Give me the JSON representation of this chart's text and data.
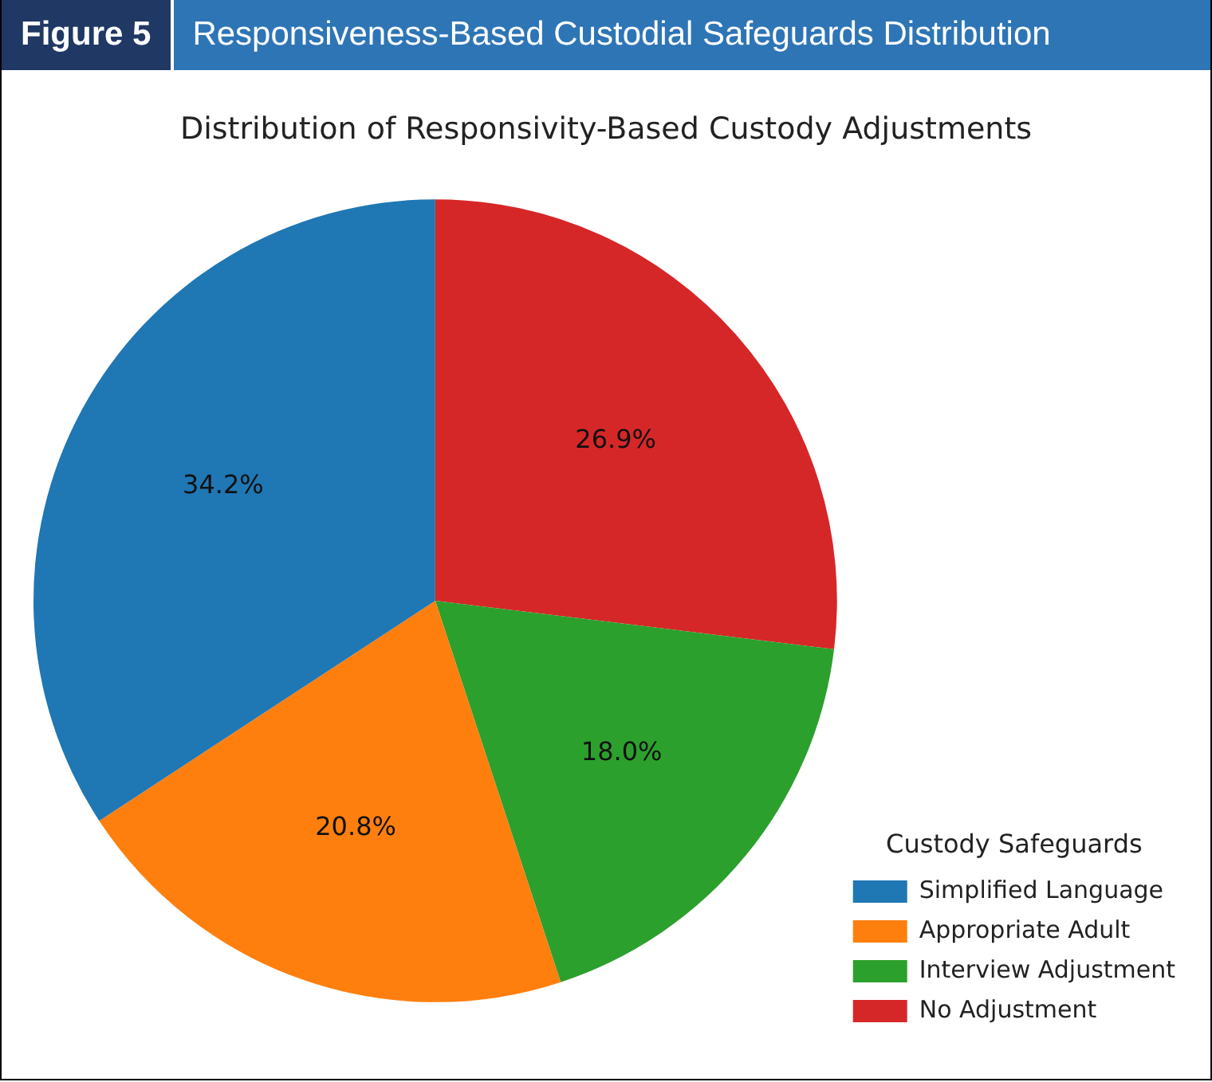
{
  "chart_data": {
    "type": "pie",
    "title": "Responsiveness-Based Custodial Safeguards Distribution",
    "subtitle": "Distribution of Responsivity-Based Custody Adjustments",
    "annotations": [
      "Figure 5"
    ],
    "legend_title": "Custody Safeguards",
    "legend": "bottom right",
    "categories": [
      "Simplified Language",
      "Appropriate Adult",
      "Interview Adjustment",
      "No Adjustment"
    ],
    "values": [
      34.2,
      20.8,
      18.0,
      26.9
    ],
    "colors": [
      "#1f77b4",
      "#ff7f0e",
      "#2ca02c",
      "#d62728"
    ],
    "value_labels": [
      "34.2%",
      "20.8%",
      "18.0%",
      "26.9%"
    ]
  }
}
